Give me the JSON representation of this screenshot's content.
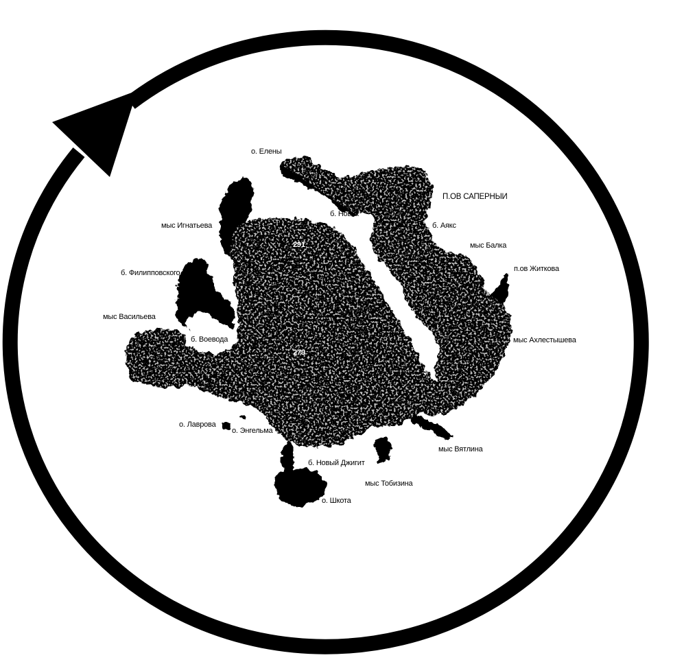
{
  "map": {
    "background_color": "#ffffff",
    "land_color": "#000000",
    "arrow_color": "#000000",
    "arrow_direction": "clockwise",
    "place_names": {
      "o_eleny": "о. Елены",
      "pov_saperny": "П.ОВ САПЕРНЫИ",
      "b_novik": "б. Новик",
      "mys_ignatyeva": "мыс Игнатьева",
      "b_ayaks": "б. Аякс",
      "mys_balka": "мыс Балка",
      "b_filippovskogo": "б. Филипповского",
      "pov_zhitkova": "п.ов Житкова",
      "mys_vasilyeva": "мыс Васильева",
      "b_voevoda": "б. Воевода",
      "mys_akhlestysheva": "мыс Ахлестышева",
      "o_lavrova": "о. Лаврова",
      "o_engelma": "о. Энгельма",
      "mys_vyatlina": "мыс Вятлина",
      "b_novy_dzhigit": "б. Новый Джигит",
      "mys_tobizina": "мыс Тобизина",
      "o_shkota": "о. Шкота"
    },
    "elevations": {
      "north_peak": "291",
      "central_peak": "279"
    }
  }
}
